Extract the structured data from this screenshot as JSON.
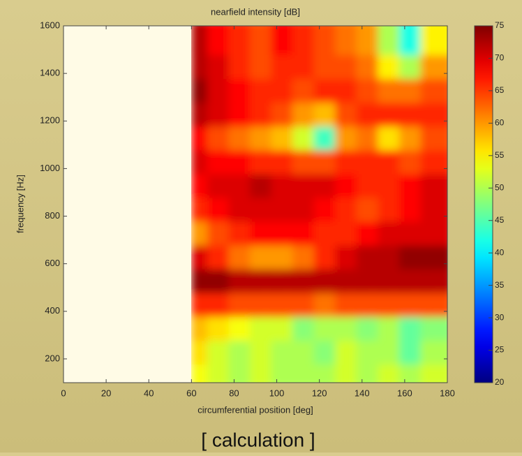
{
  "chart_data": {
    "type": "heatmap",
    "title": "nearfield intensity [dB]",
    "xlabel": "circumferential position [deg]",
    "ylabel": "frequency [Hz]",
    "x": [
      65,
      75,
      85,
      95,
      105,
      115,
      125,
      135,
      145,
      155,
      165,
      175
    ],
    "y": [
      150,
      250,
      350,
      450,
      550,
      650,
      750,
      850,
      950,
      1050,
      1150,
      1250,
      1350,
      1450,
      1550
    ],
    "z": [
      [
        54,
        52,
        50,
        52,
        50,
        50,
        50,
        52,
        50,
        52,
        50,
        52
      ],
      [
        56,
        52,
        50,
        52,
        50,
        50,
        48,
        52,
        50,
        50,
        46,
        50
      ],
      [
        58,
        56,
        54,
        52,
        52,
        48,
        50,
        50,
        48,
        50,
        46,
        48
      ],
      [
        66,
        66,
        64,
        64,
        64,
        64,
        62,
        64,
        64,
        64,
        64,
        64
      ],
      [
        74,
        74,
        72,
        72,
        72,
        72,
        72,
        72,
        72,
        72,
        72,
        72
      ],
      [
        70,
        66,
        62,
        60,
        60,
        62,
        66,
        70,
        72,
        72,
        74,
        74
      ],
      [
        60,
        64,
        66,
        68,
        68,
        68,
        66,
        66,
        68,
        70,
        70,
        70
      ],
      [
        66,
        68,
        70,
        70,
        70,
        70,
        68,
        66,
        64,
        66,
        68,
        70
      ],
      [
        68,
        70,
        70,
        72,
        70,
        70,
        70,
        68,
        66,
        66,
        68,
        70
      ],
      [
        70,
        68,
        68,
        66,
        66,
        64,
        64,
        66,
        66,
        66,
        64,
        66
      ],
      [
        68,
        64,
        62,
        60,
        58,
        52,
        44,
        60,
        62,
        56,
        60,
        64
      ],
      [
        72,
        70,
        68,
        66,
        64,
        60,
        58,
        64,
        66,
        66,
        66,
        66
      ],
      [
        74,
        70,
        68,
        66,
        66,
        64,
        66,
        66,
        64,
        62,
        62,
        64
      ],
      [
        72,
        70,
        66,
        64,
        66,
        66,
        64,
        64,
        62,
        55,
        50,
        60
      ],
      [
        72,
        68,
        66,
        64,
        68,
        66,
        64,
        62,
        60,
        50,
        42,
        55
      ]
    ],
    "xlim": [
      0,
      180
    ],
    "xticks": [
      0,
      20,
      40,
      60,
      80,
      100,
      120,
      140,
      160,
      180
    ],
    "ylim": [
      100,
      1600
    ],
    "yticks": [
      200,
      400,
      600,
      800,
      1000,
      1200,
      1400,
      1600
    ],
    "clim": [
      20,
      75
    ],
    "cticks": [
      20,
      25,
      30,
      35,
      40,
      45,
      50,
      55,
      60,
      65,
      70,
      75
    ],
    "colormap": "jet"
  },
  "caption": "[ calculation ]"
}
